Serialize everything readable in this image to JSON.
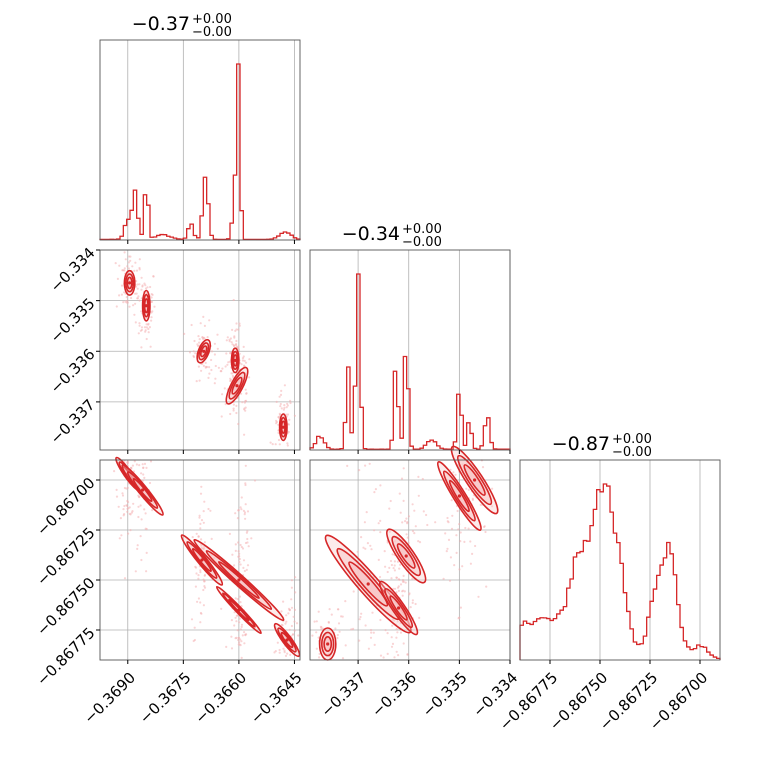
{
  "figure": {
    "width": 760,
    "height": 760,
    "series_color": "#d62728",
    "fill_color": "#f7c6c7",
    "point_color": "#f4b0b2"
  },
  "chart_data": {
    "type": "corner",
    "variables": [
      {
        "id": "p0",
        "title_value": "−0.37",
        "title_upper": "+0.00",
        "title_lower": "−0.00",
        "range": [
          -0.36975,
          -0.36435
        ],
        "ticks": [
          -0.369,
          -0.3675,
          -0.366,
          -0.3645
        ],
        "tick_labels": [
          "−0.3690",
          "−0.3675",
          "−0.3660",
          "−0.3645"
        ]
      },
      {
        "id": "p1",
        "title_value": "−0.34",
        "title_upper": "+0.00",
        "title_lower": "−0.00",
        "range": [
          -0.33795,
          -0.334
        ],
        "ticks": [
          -0.337,
          -0.336,
          -0.335,
          -0.334
        ],
        "tick_labels": [
          "−0.337",
          "−0.336",
          "−0.335",
          "−0.334"
        ]
      },
      {
        "id": "p2",
        "title_value": "−0.87",
        "title_upper": "+0.00",
        "title_lower": "−0.00",
        "range": [
          -0.8679,
          -0.8669
        ],
        "ticks": [
          -0.86775,
          -0.8675,
          -0.86725,
          -0.867
        ],
        "tick_labels": [
          "−0.86775",
          "−0.86750",
          "−0.86725",
          "−0.86700"
        ]
      }
    ],
    "histograms": [
      {
        "var": "p0",
        "peak": 0.88,
        "components": [
          {
            "mu": -0.369,
            "sigma": 9e-05,
            "w": 0.12
          },
          {
            "mu": -0.3688,
            "sigma": 7e-05,
            "w": 0.3
          },
          {
            "mu": -0.3685,
            "sigma": 5e-05,
            "w": 0.4
          },
          {
            "mu": -0.36805,
            "sigma": 0.0002,
            "w": 0.03
          },
          {
            "mu": -0.3673,
            "sigma": 7e-05,
            "w": 0.1
          },
          {
            "mu": -0.3669,
            "sigma": 7e-05,
            "w": 0.45
          },
          {
            "mu": -0.3661,
            "sigma": 6e-05,
            "w": 0.4
          },
          {
            "mu": -0.366,
            "sigma": 4e-05,
            "w": 1.0
          },
          {
            "mu": -0.36475,
            "sigma": 0.00015,
            "w": 0.05
          }
        ]
      },
      {
        "var": "p1",
        "peak": 0.88,
        "components": [
          {
            "mu": -0.33775,
            "sigma": 8e-05,
            "w": 0.07
          },
          {
            "mu": -0.3372,
            "sigma": 4e-05,
            "w": 0.4
          },
          {
            "mu": -0.337,
            "sigma": 4e-05,
            "w": 1.0
          },
          {
            "mu": -0.33625,
            "sigma": 4e-05,
            "w": 0.45
          },
          {
            "mu": -0.33605,
            "sigma": 4e-05,
            "w": 0.55
          },
          {
            "mu": -0.33555,
            "sigma": 9e-05,
            "w": 0.05
          },
          {
            "mu": -0.335,
            "sigma": 4e-05,
            "w": 0.35
          },
          {
            "mu": -0.3348,
            "sigma": 4e-05,
            "w": 0.15
          },
          {
            "mu": -0.33445,
            "sigma": 5e-05,
            "w": 0.18
          }
        ]
      },
      {
        "var": "p2",
        "peak": 0.88,
        "components": [
          {
            "mu": -0.8678,
            "sigma": 0.00015,
            "w": 0.3
          },
          {
            "mu": -0.8676,
            "sigma": 5e-05,
            "w": 0.65
          },
          {
            "mu": -0.8675,
            "sigma": 4e-05,
            "w": 1.0
          },
          {
            "mu": -0.86742,
            "sigma": 5e-05,
            "w": 0.75
          },
          {
            "mu": -0.86722,
            "sigma": 4e-05,
            "w": 0.45
          },
          {
            "mu": -0.86715,
            "sigma": 4e-05,
            "w": 0.7
          },
          {
            "mu": -0.867,
            "sigma": 4e-05,
            "w": 0.1
          }
        ]
      }
    ],
    "contours": [
      {
        "x": "p0",
        "y": "p1",
        "clusters": [
          {
            "x": -0.36895,
            "y": -0.33465,
            "sx": 7e-05,
            "sy": 0.00012,
            "rho": 0.0
          },
          {
            "x": -0.3685,
            "y": -0.3351,
            "sx": 5e-05,
            "sy": 0.00015,
            "rho": 0.0
          },
          {
            "x": -0.36695,
            "y": -0.336,
            "sx": 7e-05,
            "sy": 0.00012,
            "rho": -0.3
          },
          {
            "x": -0.3661,
            "y": -0.33618,
            "sx": 5e-05,
            "sy": 0.00012,
            "rho": 0.0
          },
          {
            "x": -0.36605,
            "y": -0.33668,
            "sx": 8e-05,
            "sy": 0.0002,
            "rho": -0.3
          },
          {
            "x": -0.3648,
            "y": -0.3375,
            "sx": 5e-05,
            "sy": 0.00013,
            "rho": 0.0
          }
        ]
      },
      {
        "x": "p0",
        "y": "p2",
        "clusters": [
          {
            "x": -0.369,
            "y": -0.86697,
            "sx": 5e-05,
            "sy": 5e-05,
            "rho": 0.3
          },
          {
            "x": -0.3686,
            "y": -0.86705,
            "sx": 6e-05,
            "sy": 8e-05,
            "rho": 0.3
          },
          {
            "x": -0.367,
            "y": -0.8674,
            "sx": 6e-05,
            "sy": 8e-05,
            "rho": 0.3
          },
          {
            "x": -0.366,
            "y": -0.8675,
            "sx": 7e-05,
            "sy": 0.00015,
            "rho": 0.5
          },
          {
            "x": -0.366,
            "y": -0.86765,
            "sx": 4e-05,
            "sy": 8e-05,
            "rho": 0.3
          },
          {
            "x": -0.3647,
            "y": -0.8678,
            "sx": 6e-05,
            "sy": 5e-05,
            "rho": 0.4
          }
        ]
      },
      {
        "x": "p1",
        "y": "p2",
        "clusters": [
          {
            "x": -0.3376,
            "y": -0.86782,
            "sx": 8e-05,
            "sy": 4e-05,
            "rho": 0.0
          },
          {
            "x": -0.3368,
            "y": -0.86752,
            "sx": 0.0001,
            "sy": 0.00016,
            "rho": 0.4
          },
          {
            "x": -0.3362,
            "y": -0.86764,
            "sx": 6e-05,
            "sy": 8e-05,
            "rho": 0.3
          },
          {
            "x": -0.33605,
            "y": -0.86738,
            "sx": 8e-05,
            "sy": 8e-05,
            "rho": 0.4
          },
          {
            "x": -0.335,
            "y": -0.86708,
            "sx": 6e-05,
            "sy": 0.0001,
            "rho": 0.2
          },
          {
            "x": -0.3347,
            "y": -0.867,
            "sx": 8e-05,
            "sy": 0.0001,
            "rho": 0.3
          }
        ]
      }
    ],
    "grid": true
  }
}
